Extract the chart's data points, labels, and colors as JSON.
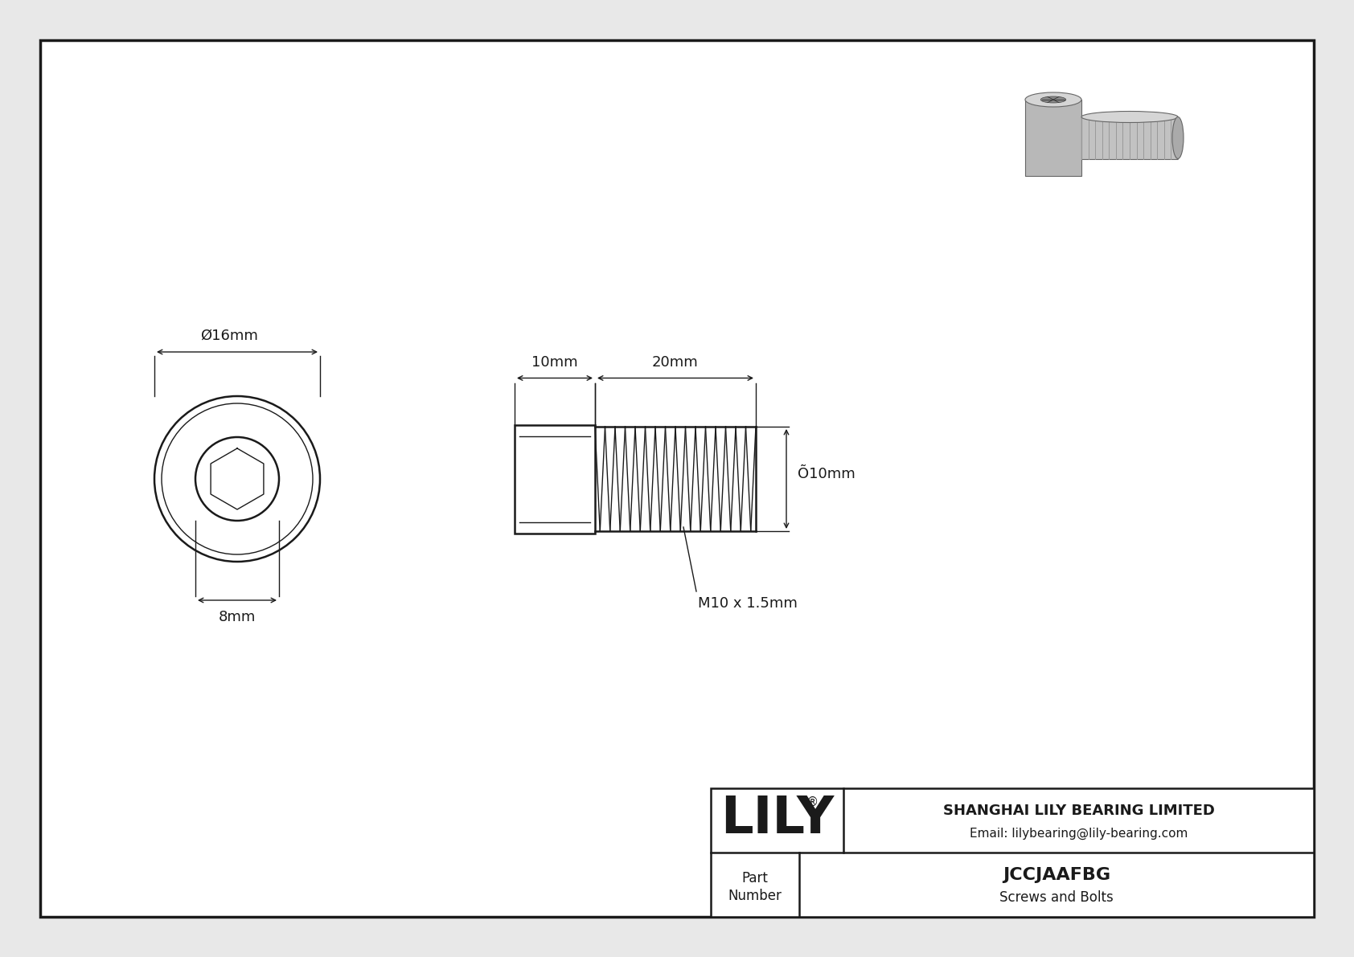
{
  "bg_color": "#e8e8e8",
  "drawing_bg": "#ffffff",
  "line_color": "#1a1a1a",
  "part_number": "JCCJAAFBG",
  "part_type": "Screws and Bolts",
  "company": "SHANGHAI LILY BEARING LIMITED",
  "email": "Email: lilybearing@lily-bearing.com",
  "lily_logo": "LILY",
  "dim_16mm": "Ø16mm",
  "dim_8mm": "8mm",
  "dim_10mm_head": "10mm",
  "dim_20mm_thread": "20mm",
  "dim_thread_dia": "Õ10mm",
  "thread_label": "M10 x 1.5mm",
  "label_part": "Part",
  "label_number": "Number"
}
